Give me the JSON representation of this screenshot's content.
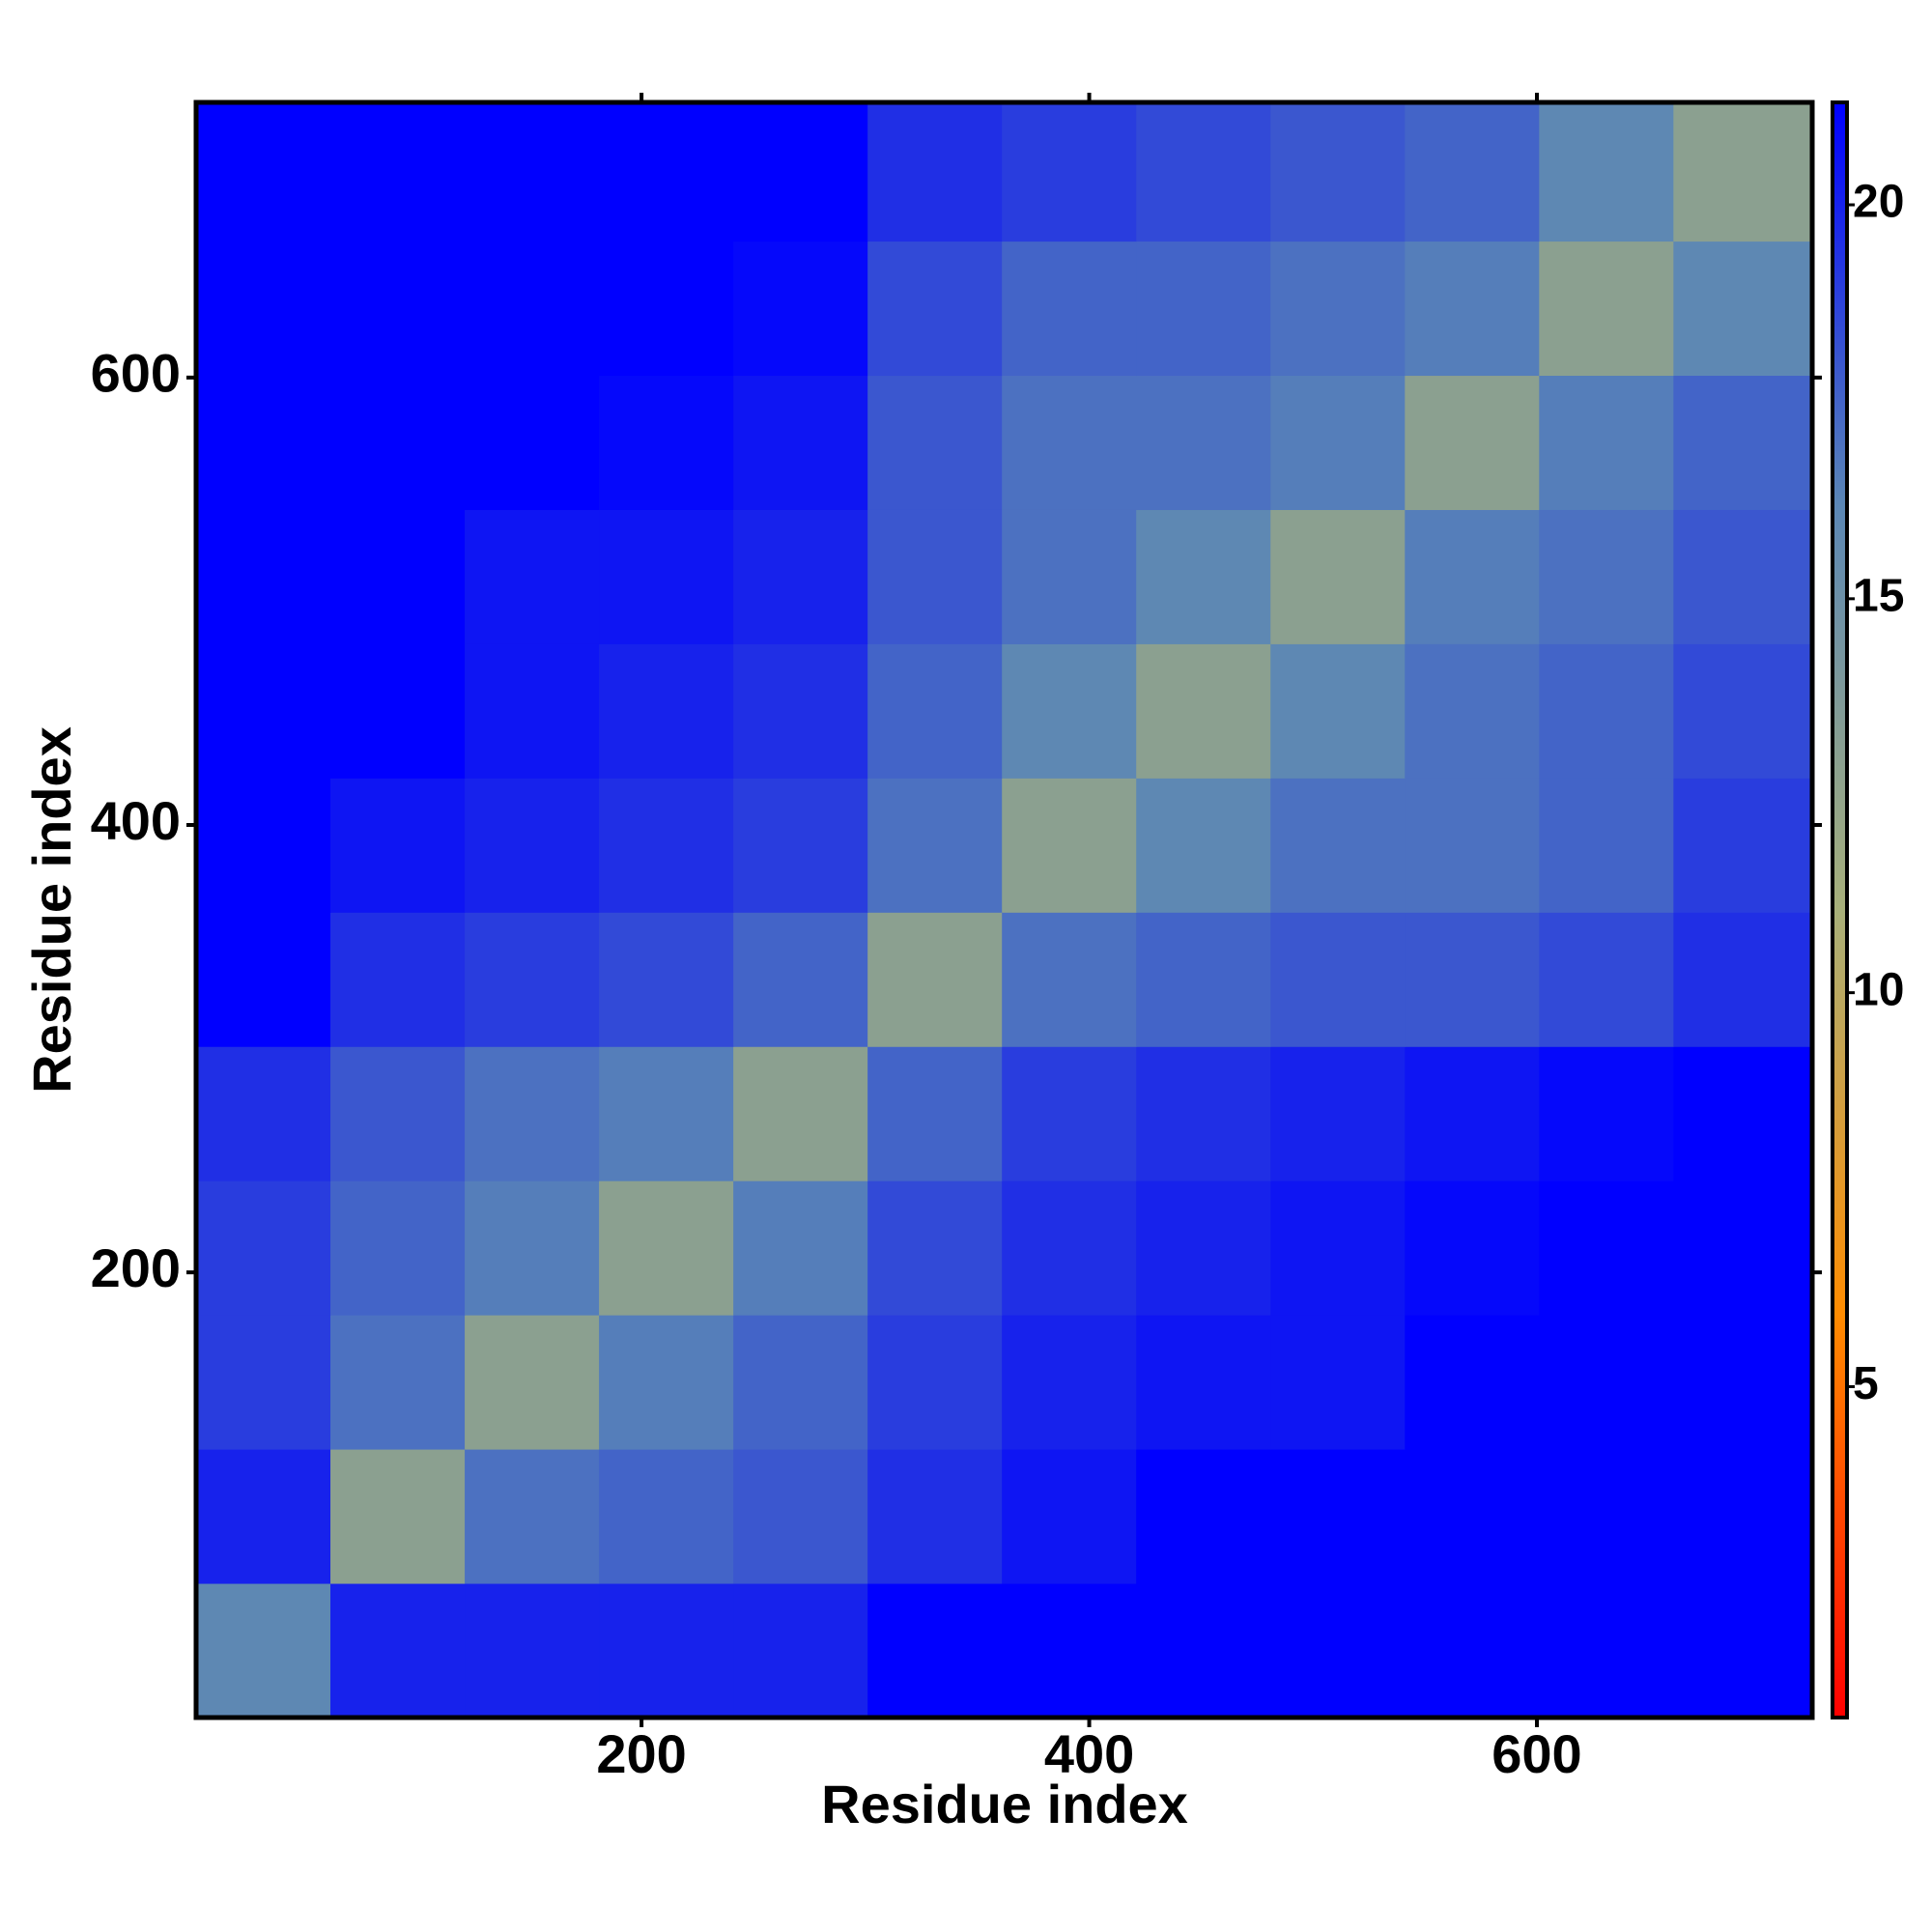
{
  "chart_data": {
    "type": "heatmap",
    "x_label": "Residue index",
    "y_label": "Residue index",
    "x_bins": [
      1,
      61,
      121,
      181,
      241,
      301,
      361,
      421,
      481,
      541,
      601,
      661,
      723
    ],
    "y_bins": [
      1,
      61,
      121,
      181,
      241,
      301,
      361,
      421,
      481,
      541,
      601,
      661,
      723
    ],
    "z": [
      [
        16,
        20,
        20,
        20,
        20,
        21.3,
        21.3,
        21.3,
        21.3,
        21.3,
        21.3,
        21.3
      ],
      [
        20,
        13,
        17,
        17.5,
        18,
        19.5,
        20.5,
        21.3,
        21.3,
        21.3,
        21.3,
        21.3
      ],
      [
        19,
        17,
        13,
        16.5,
        17.5,
        19,
        20,
        20.5,
        20.5,
        21.3,
        21.3,
        21.3
      ],
      [
        19,
        17.5,
        16.5,
        13,
        16.5,
        18.5,
        19.5,
        20,
        20.5,
        21,
        21.3,
        21.3
      ],
      [
        19.5,
        18,
        17,
        16.5,
        13,
        17.5,
        19,
        19.5,
        20,
        20.5,
        21,
        21.3
      ],
      [
        21.3,
        19.5,
        19,
        18.5,
        17.5,
        13,
        17,
        17.5,
        18,
        18,
        18.5,
        19.5
      ],
      [
        21.3,
        20.5,
        20,
        19.5,
        19,
        17,
        13,
        16,
        17,
        17,
        17.5,
        19
      ],
      [
        21.3,
        21.3,
        20.5,
        20,
        19.5,
        17.5,
        16,
        13,
        16,
        17,
        17.5,
        18.5
      ],
      [
        21.3,
        21.3,
        20.5,
        20.5,
        20,
        18,
        17,
        16,
        13,
        16.5,
        17,
        18
      ],
      [
        21.3,
        21.3,
        21.3,
        21,
        20.5,
        18,
        17,
        17,
        16.5,
        13,
        16.5,
        17.5
      ],
      [
        21.3,
        21.3,
        21.3,
        21.3,
        21,
        18.5,
        17.5,
        17.5,
        17,
        16.5,
        13,
        16
      ],
      [
        21.3,
        21.3,
        21.3,
        21.3,
        21.3,
        19.5,
        19,
        18.5,
        18,
        17.5,
        16,
        13
      ]
    ],
    "xlim": [
      1,
      723
    ],
    "ylim": [
      1,
      723
    ],
    "xticks": [
      200,
      400,
      600
    ],
    "yticks": [
      200,
      400,
      600
    ],
    "colorbar_lim": [
      0.8,
      21.3
    ],
    "colorbar_ticks": [
      5,
      10,
      15,
      20
    ],
    "colors": [
      "#ff0000",
      "#ff8c00",
      "#a8b07a",
      "#5b87b5",
      "#0000ff"
    ]
  }
}
